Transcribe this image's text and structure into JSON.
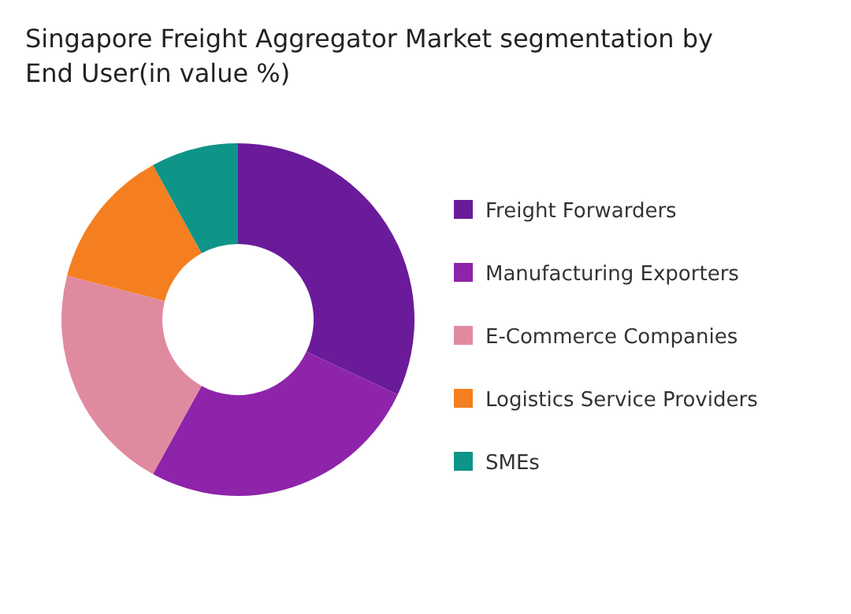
{
  "chart_data": {
    "type": "donut",
    "title": "Singapore Freight Aggregator Market segmentation by End User(in value %)",
    "categories": [
      "Freight Forwarders",
      "Manufacturing Exporters",
      "E-Commerce Companies",
      "Logistics Service Providers",
      "SMEs"
    ],
    "values": [
      32,
      26,
      21,
      13,
      8
    ],
    "colors": [
      "#6a1b9a",
      "#8e24aa",
      "#e08aa0",
      "#f57f20",
      "#0f9488"
    ],
    "legend": "right"
  }
}
